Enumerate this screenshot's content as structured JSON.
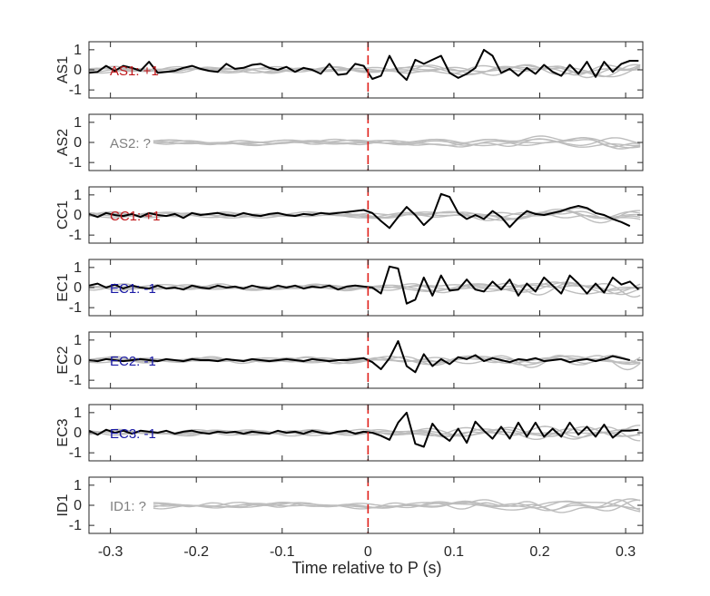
{
  "chart_data": {
    "type": "line",
    "xlabel": "Time relative to P (s)",
    "xlim": [
      -0.325,
      0.32
    ],
    "xticks": [
      -0.3,
      -0.2,
      -0.1,
      0,
      0.1,
      0.2,
      0.3
    ],
    "xtick_labels": [
      "-0.3",
      "-0.2",
      "-0.1",
      "0",
      "0.1",
      "0.2",
      "0.3"
    ],
    "ylim": [
      -1.4,
      1.4
    ],
    "yticks": [
      -1,
      0,
      1
    ],
    "ytick_labels": [
      "-1",
      "0",
      "1"
    ],
    "marker": {
      "x": 0,
      "style": "dashed",
      "color": "#e0201b"
    },
    "colors": {
      "black_trace": "#000000",
      "gray_traces": "#bdbdbd",
      "positive": "#c0181b",
      "negative": "#1a1aa6",
      "unknown": "#7f7f7f"
    },
    "panels": [
      {
        "ylabel": "AS1",
        "annotation": "AS1: +1",
        "annotation_color": "#c0181b",
        "series": {
          "x": [
            -0.325,
            -0.315,
            -0.305,
            -0.295,
            -0.285,
            -0.275,
            -0.265,
            -0.255,
            -0.245,
            -0.235,
            -0.225,
            -0.215,
            -0.205,
            -0.195,
            -0.185,
            -0.175,
            -0.165,
            -0.155,
            -0.145,
            -0.135,
            -0.125,
            -0.115,
            -0.105,
            -0.095,
            -0.085,
            -0.075,
            -0.065,
            -0.055,
            -0.045,
            -0.035,
            -0.025,
            -0.015,
            -0.005,
            0.005,
            0.015,
            0.025,
            0.035,
            0.045,
            0.055,
            0.065,
            0.075,
            0.085,
            0.095,
            0.105,
            0.115,
            0.125,
            0.135,
            0.145,
            0.155,
            0.165,
            0.175,
            0.185,
            0.195,
            0.205,
            0.215,
            0.225,
            0.235,
            0.245,
            0.255,
            0.265,
            0.275,
            0.285,
            0.295,
            0.305,
            0.315
          ],
          "y": [
            -0.15,
            -0.1,
            0.2,
            -0.05,
            0.2,
            0.1,
            -0.05,
            0.4,
            -0.15,
            -0.1,
            -0.05,
            0.1,
            0.2,
            0.05,
            -0.05,
            -0.1,
            0.3,
            0.05,
            0.1,
            0.25,
            0.3,
            0.1,
            0.0,
            0.15,
            -0.1,
            0.1,
            0.0,
            -0.2,
            0.3,
            -0.25,
            -0.2,
            0.3,
            0.2,
            -0.45,
            -0.3,
            0.7,
            -0.1,
            -0.5,
            0.5,
            0.3,
            0.5,
            0.7,
            -0.15,
            -0.4,
            -0.2,
            0.1,
            1.0,
            0.7,
            -0.15,
            0.05,
            -0.3,
            0.1,
            -0.2,
            0.25,
            -0.1,
            -0.3,
            0.25,
            -0.2,
            0.4,
            -0.35,
            0.4,
            -0.1,
            0.3,
            0.45,
            0.45
          ]
        }
      },
      {
        "ylabel": "AS2",
        "annotation": "AS2: ?",
        "annotation_color": "#7f7f7f",
        "series": null
      },
      {
        "ylabel": "CC1",
        "annotation": "CC1: +1",
        "annotation_color": "#c0181b",
        "series": {
          "x": [
            -0.325,
            -0.315,
            -0.305,
            -0.295,
            -0.285,
            -0.275,
            -0.265,
            -0.255,
            -0.245,
            -0.235,
            -0.225,
            -0.215,
            -0.205,
            -0.195,
            -0.185,
            -0.175,
            -0.165,
            -0.155,
            -0.145,
            -0.135,
            -0.125,
            -0.115,
            -0.105,
            -0.095,
            -0.085,
            -0.075,
            -0.065,
            -0.055,
            -0.045,
            -0.035,
            -0.025,
            -0.015,
            -0.005,
            0.005,
            0.015,
            0.025,
            0.035,
            0.045,
            0.055,
            0.065,
            0.075,
            0.085,
            0.095,
            0.105,
            0.115,
            0.125,
            0.135,
            0.145,
            0.155,
            0.165,
            0.175,
            0.185,
            0.195,
            0.205,
            0.215,
            0.225,
            0.235,
            0.245,
            0.255,
            0.265,
            0.275,
            0.285,
            0.295,
            0.305
          ],
          "y": [
            0.05,
            -0.1,
            0.1,
            0.0,
            -0.05,
            0.05,
            -0.1,
            0.1,
            0.0,
            -0.05,
            0.05,
            -0.15,
            0.1,
            0.0,
            0.05,
            0.1,
            0.0,
            -0.05,
            0.1,
            0.0,
            -0.05,
            0.05,
            0.1,
            0.0,
            -0.05,
            0.05,
            0.0,
            0.1,
            0.05,
            0.1,
            0.15,
            0.2,
            0.25,
            0.1,
            -0.3,
            -0.65,
            -0.1,
            0.4,
            0.0,
            -0.5,
            -0.1,
            1.05,
            0.9,
            0.1,
            -0.2,
            0.0,
            -0.2,
            0.2,
            -0.1,
            -0.6,
            -0.15,
            0.2,
            0.05,
            0.0,
            0.1,
            0.2,
            0.35,
            0.45,
            0.35,
            0.1,
            0.0,
            -0.2,
            -0.35,
            -0.55
          ]
        }
      },
      {
        "ylabel": "EC1",
        "annotation": "EC1: -1",
        "annotation_color": "#1a1aa6",
        "series": {
          "x": [
            -0.325,
            -0.315,
            -0.305,
            -0.295,
            -0.285,
            -0.275,
            -0.265,
            -0.255,
            -0.245,
            -0.235,
            -0.225,
            -0.215,
            -0.205,
            -0.195,
            -0.185,
            -0.175,
            -0.165,
            -0.155,
            -0.145,
            -0.135,
            -0.125,
            -0.115,
            -0.105,
            -0.095,
            -0.085,
            -0.075,
            -0.065,
            -0.055,
            -0.045,
            -0.035,
            -0.025,
            -0.015,
            -0.005,
            0.005,
            0.015,
            0.025,
            0.035,
            0.045,
            0.055,
            0.065,
            0.075,
            0.085,
            0.095,
            0.105,
            0.115,
            0.125,
            0.135,
            0.145,
            0.155,
            0.165,
            0.175,
            0.185,
            0.195,
            0.205,
            0.215,
            0.225,
            0.235,
            0.245,
            0.255,
            0.265,
            0.275,
            0.285,
            0.295,
            0.305,
            0.315
          ],
          "y": [
            0.1,
            0.2,
            0.0,
            0.15,
            -0.05,
            0.1,
            0.0,
            -0.05,
            0.1,
            -0.05,
            0.0,
            -0.1,
            0.1,
            0.0,
            -0.05,
            0.1,
            0.0,
            0.05,
            -0.05,
            0.1,
            0.0,
            -0.05,
            0.1,
            0.0,
            0.1,
            -0.05,
            0.05,
            0.0,
            0.1,
            -0.1,
            0.05,
            0.1,
            0.05,
            0.0,
            -0.3,
            1.05,
            0.95,
            -0.8,
            -0.6,
            0.5,
            -0.4,
            0.6,
            -0.15,
            -0.1,
            0.4,
            -0.1,
            -0.2,
            0.3,
            -0.1,
            0.4,
            -0.4,
            0.2,
            -0.2,
            0.5,
            0.1,
            -0.3,
            0.6,
            0.2,
            -0.3,
            0.2,
            -0.25,
            0.5,
            0.15,
            0.3,
            -0.1
          ]
        }
      },
      {
        "ylabel": "EC2",
        "annotation": "EC2: -1",
        "annotation_color": "#1a1aa6",
        "series": {
          "x": [
            -0.325,
            -0.315,
            -0.305,
            -0.295,
            -0.285,
            -0.275,
            -0.265,
            -0.255,
            -0.245,
            -0.235,
            -0.225,
            -0.215,
            -0.205,
            -0.195,
            -0.185,
            -0.175,
            -0.165,
            -0.155,
            -0.145,
            -0.135,
            -0.125,
            -0.115,
            -0.105,
            -0.095,
            -0.085,
            -0.075,
            -0.065,
            -0.055,
            -0.045,
            -0.035,
            -0.025,
            -0.015,
            -0.005,
            0.005,
            0.015,
            0.025,
            0.035,
            0.045,
            0.055,
            0.065,
            0.075,
            0.085,
            0.095,
            0.105,
            0.115,
            0.125,
            0.135,
            0.145,
            0.155,
            0.165,
            0.175,
            0.185,
            0.195,
            0.205,
            0.215,
            0.225,
            0.235,
            0.245,
            0.255,
            0.265,
            0.275,
            0.285,
            0.295,
            0.305
          ],
          "y": [
            0.0,
            -0.05,
            0.05,
            0.0,
            -0.05,
            0.0,
            0.05,
            0.0,
            -0.05,
            0.05,
            0.0,
            -0.05,
            0.05,
            0.0,
            0.0,
            -0.05,
            0.05,
            0.0,
            -0.05,
            0.05,
            0.0,
            -0.05,
            0.0,
            0.05,
            0.0,
            -0.05,
            0.05,
            0.0,
            -0.05,
            0.0,
            0.0,
            0.05,
            0.1,
            -0.1,
            -0.45,
            0.1,
            0.95,
            -0.3,
            -0.6,
            0.3,
            -0.3,
            0.05,
            -0.2,
            0.15,
            0.05,
            0.25,
            -0.05,
            0.1,
            0.0,
            -0.1,
            0.05,
            0.0,
            0.1,
            -0.05,
            0.0,
            0.05,
            -0.1,
            0.0,
            0.05,
            -0.05,
            0.05,
            0.2,
            0.1,
            0.0
          ]
        }
      },
      {
        "ylabel": "EC3",
        "annotation": "EC3: -1",
        "annotation_color": "#1a1aa6",
        "series": {
          "x": [
            -0.325,
            -0.315,
            -0.305,
            -0.295,
            -0.285,
            -0.275,
            -0.265,
            -0.255,
            -0.245,
            -0.235,
            -0.225,
            -0.215,
            -0.205,
            -0.195,
            -0.185,
            -0.175,
            -0.165,
            -0.155,
            -0.145,
            -0.135,
            -0.125,
            -0.115,
            -0.105,
            -0.095,
            -0.085,
            -0.075,
            -0.065,
            -0.055,
            -0.045,
            -0.035,
            -0.025,
            -0.015,
            -0.005,
            0.005,
            0.015,
            0.025,
            0.035,
            0.045,
            0.055,
            0.065,
            0.075,
            0.085,
            0.095,
            0.105,
            0.115,
            0.125,
            0.135,
            0.145,
            0.155,
            0.165,
            0.175,
            0.185,
            0.195,
            0.205,
            0.215,
            0.225,
            0.235,
            0.245,
            0.255,
            0.265,
            0.275,
            0.285,
            0.295,
            0.305,
            0.315
          ],
          "y": [
            0.1,
            -0.1,
            0.15,
            0.0,
            0.1,
            -0.05,
            0.1,
            0.05,
            0.0,
            0.1,
            -0.05,
            0.05,
            0.1,
            0.0,
            -0.05,
            0.05,
            0.0,
            0.05,
            -0.05,
            0.05,
            0.0,
            -0.05,
            0.1,
            0.0,
            0.05,
            -0.05,
            0.1,
            0.0,
            -0.05,
            0.05,
            0.1,
            -0.05,
            0.05,
            0.0,
            -0.15,
            -0.35,
            0.5,
            1.0,
            -0.55,
            -0.7,
            0.45,
            -0.1,
            -0.4,
            0.2,
            -0.5,
            0.55,
            0.1,
            -0.3,
            0.3,
            -0.3,
            0.5,
            -0.2,
            0.5,
            -0.2,
            0.2,
            -0.2,
            0.5,
            -0.1,
            0.3,
            -0.2,
            0.4,
            -0.25,
            0.1,
            0.1,
            0.15
          ]
        }
      },
      {
        "ylabel": "ID1",
        "annotation": "ID1: ?",
        "annotation_color": "#7f7f7f",
        "series": null
      }
    ]
  }
}
